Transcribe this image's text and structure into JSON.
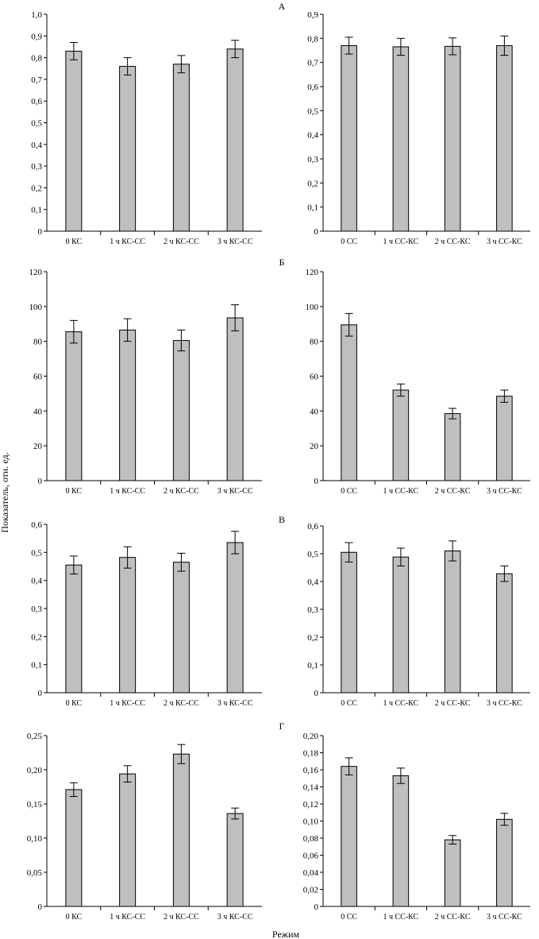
{
  "figure": {
    "ylabel": "Показатель, отн. ед.",
    "xlabel": "Режим",
    "bar_color": "#bfbfbf",
    "edge_color": "#000000"
  },
  "chart_data": [
    {
      "panel": "А",
      "type": "bar",
      "categories": [
        "0 КС",
        "1 ч КС-СС",
        "2 ч КС-СС",
        "3 ч КС-СС"
      ],
      "values": [
        0.83,
        0.76,
        0.77,
        0.84
      ],
      "errors": [
        0.04,
        0.04,
        0.04,
        0.04
      ],
      "ylim": [
        0,
        1.0
      ],
      "yticks": [
        "0",
        "0,1",
        "0,2",
        "0,3",
        "0,4",
        "0,5",
        "0,6",
        "0,7",
        "0,8",
        "0,9",
        "1,0"
      ]
    },
    {
      "panel": "",
      "type": "bar",
      "categories": [
        "0 СС",
        "1 ч СС-КС",
        "2 ч СС-КС",
        "3 ч СС-КС"
      ],
      "values": [
        0.77,
        0.765,
        0.767,
        0.77
      ],
      "errors": [
        0.035,
        0.035,
        0.035,
        0.04
      ],
      "ylim": [
        0,
        0.9
      ],
      "yticks": [
        "0",
        "0,1",
        "0,2",
        "0,3",
        "0,4",
        "0,5",
        "0,6",
        "0,7",
        "0,8",
        "0,9"
      ]
    },
    {
      "panel": "",
      "type": "bar",
      "categories": [
        "0 КС",
        "1 ч КС-СС",
        "2 ч КС-СС",
        "3 ч КС-СС"
      ],
      "values": [
        85.5,
        86.5,
        80.5,
        93.5
      ],
      "errors": [
        6.5,
        6.5,
        6.0,
        7.5
      ],
      "ylim": [
        0,
        120
      ],
      "yticks": [
        "0",
        "20",
        "40",
        "60",
        "80",
        "100",
        "120"
      ]
    },
    {
      "panel": "Б",
      "type": "bar",
      "categories": [
        "0 СС",
        "1 ч СС-КС",
        "2 ч СС-КС",
        "3 ч СС-КС"
      ],
      "values": [
        89.5,
        52.0,
        38.5,
        48.5
      ],
      "errors": [
        6.5,
        3.5,
        3.0,
        3.5
      ],
      "ylim": [
        0,
        120
      ],
      "yticks": [
        "0",
        "20",
        "40",
        "60",
        "80",
        "100",
        "120"
      ]
    },
    {
      "panel": "",
      "type": "bar",
      "categories": [
        "0 КС",
        "1 ч КС-СС",
        "2 ч КС-СС",
        "3 ч КС-СС"
      ],
      "values": [
        0.455,
        0.482,
        0.465,
        0.535
      ],
      "errors": [
        0.032,
        0.038,
        0.032,
        0.04
      ],
      "ylim": [
        0,
        0.6
      ],
      "yticks": [
        "0",
        "0,1",
        "0,2",
        "0,3",
        "0,4",
        "0,5",
        "0,6"
      ]
    },
    {
      "panel": "В",
      "type": "bar",
      "categories": [
        "0 СС",
        "1 ч СС-КС",
        "2 ч СС-КС",
        "3 ч СС-КС"
      ],
      "values": [
        0.505,
        0.488,
        0.51,
        0.428
      ],
      "errors": [
        0.035,
        0.032,
        0.036,
        0.028
      ],
      "ylim": [
        0,
        0.6
      ],
      "yticks": [
        "0",
        "0,1",
        "0,2",
        "0,3",
        "0,4",
        "0,5",
        "0,6"
      ]
    },
    {
      "panel": "",
      "type": "bar",
      "categories": [
        "0 КС",
        "1 ч КС-СС",
        "2 ч КС-СС",
        "3 ч КС-СС"
      ],
      "values": [
        0.171,
        0.194,
        0.223,
        0.136
      ],
      "errors": [
        0.01,
        0.012,
        0.014,
        0.008
      ],
      "ylim": [
        0,
        0.25
      ],
      "yticks": [
        "0",
        "0,05",
        "0,10",
        "0,15",
        "0,20",
        "0,25"
      ]
    },
    {
      "panel": "Г",
      "type": "bar",
      "categories": [
        "0 СС",
        "1 ч СС-КС",
        "2 ч СС-КС",
        "3 ч СС-КС"
      ],
      "values": [
        0.164,
        0.153,
        0.078,
        0.102
      ],
      "errors": [
        0.01,
        0.009,
        0.005,
        0.007
      ],
      "ylim": [
        0,
        0.2
      ],
      "yticks": [
        "0",
        "0,02",
        "0,04",
        "0,06",
        "0,08",
        "0,10",
        "0,12",
        "0,14",
        "0,16",
        "0,18",
        "0,20"
      ]
    }
  ]
}
